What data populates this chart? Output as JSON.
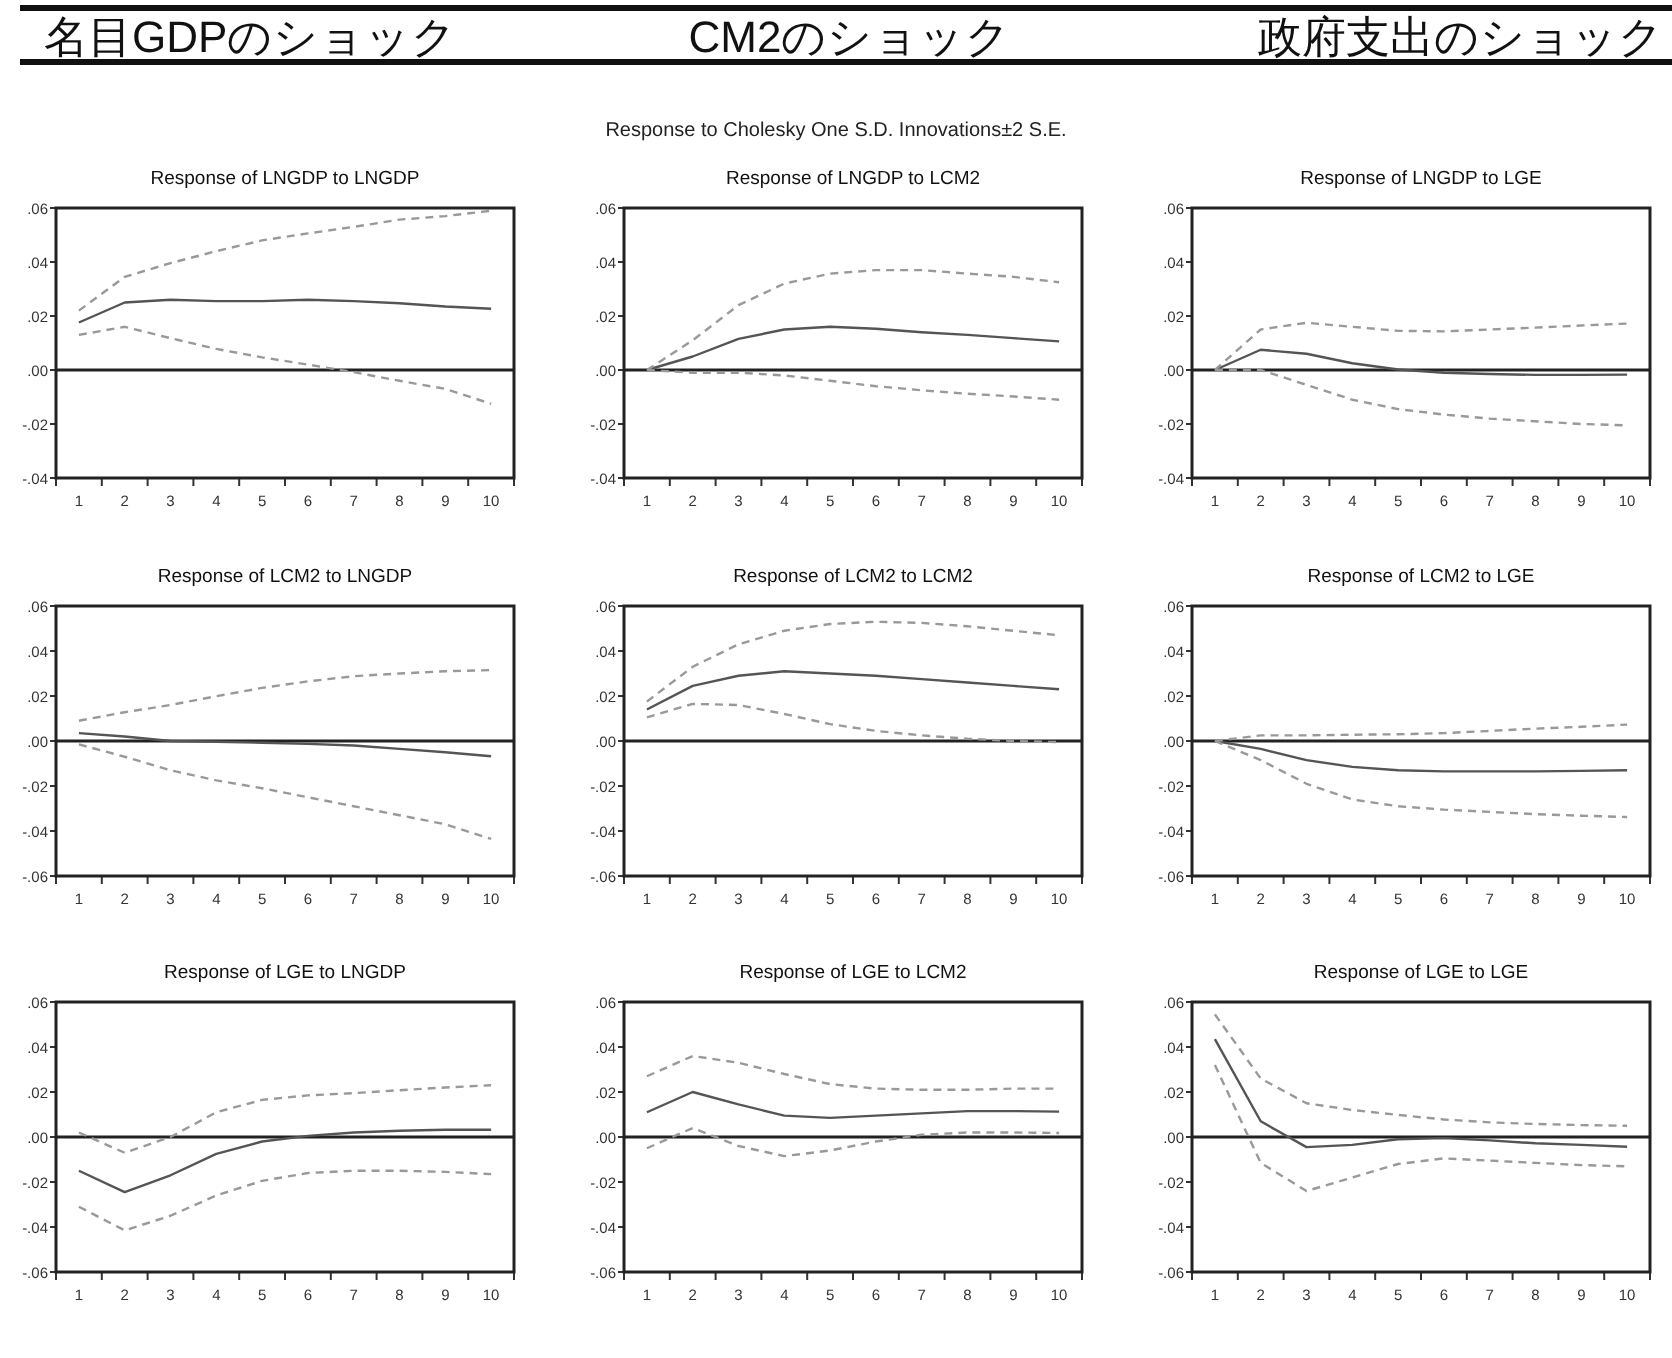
{
  "chart_data": [
    {
      "type": "other",
      "annotations": [
        "名目GDPのショック",
        "CM2のショック",
        "政府支出のショック",
        "Response to Cholesky One S.D. Innovations±2 S.E."
      ]
    },
    {
      "type": "line",
      "title": "Response of LNGDP to LNGDP",
      "categories": [
        "1",
        "2",
        "3",
        "4",
        "5",
        "6",
        "7",
        "8",
        "9",
        "10"
      ],
      "ylim": [
        -0.04,
        0.06
      ],
      "yticks": [
        {
          "value": -0.04,
          "label": "-.04"
        },
        {
          "value": -0.02,
          "label": "-.02"
        },
        {
          "value": 0,
          "label": ".00"
        },
        {
          "value": 0.02,
          "label": ".02"
        },
        {
          "value": 0.04,
          "label": ".04"
        },
        {
          "value": 0.06,
          "label": ".06"
        }
      ],
      "ref_lines": [
        {
          "axis": "y",
          "value": 0
        }
      ],
      "series": [
        {
          "color": "#555555",
          "line_style": "solid",
          "values": [
            0.0176,
            0.025,
            0.026,
            0.0255,
            0.0255,
            0.026,
            0.0255,
            0.0247,
            0.0235,
            0.0227
          ]
        },
        {
          "color": "#999999",
          "line_style": "dashed",
          "values": [
            0.022,
            0.0345,
            0.0396,
            0.044,
            0.048,
            0.0506,
            0.053,
            0.0557,
            0.057,
            0.059
          ]
        },
        {
          "color": "#999999",
          "line_style": "dashed",
          "values": [
            0.013,
            0.016,
            0.0118,
            0.0078,
            0.0047,
            0.002,
            -0.0008,
            -0.004,
            -0.007,
            -0.0125
          ]
        }
      ]
    },
    {
      "type": "line",
      "title": "Response of LNGDP to LCM2",
      "categories": [
        "1",
        "2",
        "3",
        "4",
        "5",
        "6",
        "7",
        "8",
        "9",
        "10"
      ],
      "ylim": [
        -0.04,
        0.06
      ],
      "yticks": [
        {
          "value": -0.04,
          "label": "-.04"
        },
        {
          "value": -0.02,
          "label": "-.02"
        },
        {
          "value": 0,
          "label": ".00"
        },
        {
          "value": 0.02,
          "label": ".02"
        },
        {
          "value": 0.04,
          "label": ".04"
        },
        {
          "value": 0.06,
          "label": ".06"
        }
      ],
      "ref_lines": [
        {
          "axis": "y",
          "value": 0
        }
      ],
      "series": [
        {
          "color": "#555555",
          "line_style": "solid",
          "values": [
            0,
            0.005,
            0.0115,
            0.015,
            0.016,
            0.0153,
            0.014,
            0.013,
            0.0118,
            0.0106
          ]
        },
        {
          "color": "#999999",
          "line_style": "dashed",
          "values": [
            0,
            0.011,
            0.024,
            0.032,
            0.0357,
            0.037,
            0.037,
            0.0357,
            0.0345,
            0.0325
          ]
        },
        {
          "color": "#999999",
          "line_style": "dashed",
          "values": [
            0,
            -0.001,
            -0.001,
            -0.002,
            -0.004,
            -0.006,
            -0.0075,
            -0.0088,
            -0.0098,
            -0.011
          ]
        }
      ]
    },
    {
      "type": "line",
      "title": "Response of LNGDP to LGE",
      "categories": [
        "1",
        "2",
        "3",
        "4",
        "5",
        "6",
        "7",
        "8",
        "9",
        "10"
      ],
      "ylim": [
        -0.04,
        0.06
      ],
      "yticks": [
        {
          "value": -0.04,
          "label": "-.04"
        },
        {
          "value": -0.02,
          "label": "-.02"
        },
        {
          "value": 0,
          "label": ".00"
        },
        {
          "value": 0.02,
          "label": ".02"
        },
        {
          "value": 0.04,
          "label": ".04"
        },
        {
          "value": 0.06,
          "label": ".06"
        }
      ],
      "ref_lines": [
        {
          "axis": "y",
          "value": 0
        }
      ],
      "series": [
        {
          "color": "#555555",
          "line_style": "solid",
          "values": [
            0,
            0.0075,
            0.006,
            0.0025,
            0.0002,
            -0.001,
            -0.0015,
            -0.0018,
            -0.0018,
            -0.0017
          ]
        },
        {
          "color": "#999999",
          "line_style": "dashed",
          "values": [
            0,
            0.015,
            0.0175,
            0.016,
            0.0145,
            0.0143,
            0.015,
            0.0157,
            0.0165,
            0.0172
          ]
        },
        {
          "color": "#999999",
          "line_style": "dashed",
          "values": [
            0,
            0,
            -0.0055,
            -0.011,
            -0.0145,
            -0.0165,
            -0.018,
            -0.019,
            -0.02,
            -0.0205
          ]
        }
      ]
    },
    {
      "type": "line",
      "title": "Response of LCM2 to LNGDP",
      "categories": [
        "1",
        "2",
        "3",
        "4",
        "5",
        "6",
        "7",
        "8",
        "9",
        "10"
      ],
      "ylim": [
        -0.06,
        0.06
      ],
      "yticks": [
        {
          "value": -0.06,
          "label": "-.06"
        },
        {
          "value": -0.04,
          "label": "-.04"
        },
        {
          "value": -0.02,
          "label": "-.02"
        },
        {
          "value": 0,
          "label": ".00"
        },
        {
          "value": 0.02,
          "label": ".02"
        },
        {
          "value": 0.04,
          "label": ".04"
        },
        {
          "value": 0.06,
          "label": ".06"
        }
      ],
      "ref_lines": [
        {
          "axis": "y",
          "value": 0
        }
      ],
      "series": [
        {
          "color": "#555555",
          "line_style": "solid",
          "values": [
            0.0035,
            0.002,
            0,
            -0.0003,
            -0.0008,
            -0.0013,
            -0.002,
            -0.0035,
            -0.005,
            -0.0068
          ]
        },
        {
          "color": "#999999",
          "line_style": "dashed",
          "values": [
            0.009,
            0.0128,
            0.016,
            0.0199,
            0.0236,
            0.0265,
            0.0288,
            0.03,
            0.031,
            0.0315
          ]
        },
        {
          "color": "#999999",
          "line_style": "dashed",
          "values": [
            -0.0015,
            -0.007,
            -0.013,
            -0.0175,
            -0.021,
            -0.025,
            -0.029,
            -0.033,
            -0.037,
            -0.0435
          ]
        }
      ]
    },
    {
      "type": "line",
      "title": "Response of LCM2 to LCM2",
      "categories": [
        "1",
        "2",
        "3",
        "4",
        "5",
        "6",
        "7",
        "8",
        "9",
        "10"
      ],
      "ylim": [
        -0.06,
        0.06
      ],
      "yticks": [
        {
          "value": -0.06,
          "label": "-.06"
        },
        {
          "value": -0.04,
          "label": "-.04"
        },
        {
          "value": -0.02,
          "label": "-.02"
        },
        {
          "value": 0,
          "label": ".00"
        },
        {
          "value": 0.02,
          "label": ".02"
        },
        {
          "value": 0.04,
          "label": ".04"
        },
        {
          "value": 0.06,
          "label": ".06"
        }
      ],
      "ref_lines": [
        {
          "axis": "y",
          "value": 0
        }
      ],
      "series": [
        {
          "color": "#555555",
          "line_style": "solid",
          "values": [
            0.014,
            0.0245,
            0.029,
            0.031,
            0.03,
            0.029,
            0.0275,
            0.026,
            0.0245,
            0.023
          ]
        },
        {
          "color": "#999999",
          "line_style": "dashed",
          "values": [
            0.0175,
            0.033,
            0.043,
            0.049,
            0.052,
            0.053,
            0.0525,
            0.051,
            0.049,
            0.047
          ]
        },
        {
          "color": "#999999",
          "line_style": "dashed",
          "values": [
            0.0105,
            0.0165,
            0.016,
            0.012,
            0.0075,
            0.0045,
            0.0025,
            0.001,
            0,
            -0.0005
          ]
        }
      ]
    },
    {
      "type": "line",
      "title": "Response of LCM2 to LGE",
      "categories": [
        "1",
        "2",
        "3",
        "4",
        "5",
        "6",
        "7",
        "8",
        "9",
        "10"
      ],
      "ylim": [
        -0.06,
        0.06
      ],
      "yticks": [
        {
          "value": -0.06,
          "label": "-.06"
        },
        {
          "value": -0.04,
          "label": "-.04"
        },
        {
          "value": -0.02,
          "label": "-.02"
        },
        {
          "value": 0,
          "label": ".00"
        },
        {
          "value": 0.02,
          "label": ".02"
        },
        {
          "value": 0.04,
          "label": ".04"
        },
        {
          "value": 0.06,
          "label": ".06"
        }
      ],
      "ref_lines": [
        {
          "axis": "y",
          "value": 0
        }
      ],
      "series": [
        {
          "color": "#555555",
          "line_style": "solid",
          "values": [
            0,
            -0.0035,
            -0.0085,
            -0.0115,
            -0.013,
            -0.0135,
            -0.0135,
            -0.0135,
            -0.0133,
            -0.013
          ]
        },
        {
          "color": "#999999",
          "line_style": "dashed",
          "values": [
            0,
            0.0025,
            0.0025,
            0.0028,
            0.003,
            0.0035,
            0.0045,
            0.0055,
            0.0063,
            0.0073
          ]
        },
        {
          "color": "#999999",
          "line_style": "dashed",
          "values": [
            0,
            -0.0085,
            -0.019,
            -0.026,
            -0.029,
            -0.0305,
            -0.0315,
            -0.0325,
            -0.0332,
            -0.0338
          ]
        }
      ]
    },
    {
      "type": "line",
      "title": "Response of LGE to LNGDP",
      "categories": [
        "1",
        "2",
        "3",
        "4",
        "5",
        "6",
        "7",
        "8",
        "9",
        "10"
      ],
      "ylim": [
        -0.06,
        0.06
      ],
      "yticks": [
        {
          "value": -0.06,
          "label": "-.06"
        },
        {
          "value": -0.04,
          "label": "-.04"
        },
        {
          "value": -0.02,
          "label": "-.02"
        },
        {
          "value": 0,
          "label": ".00"
        },
        {
          "value": 0.02,
          "label": ".02"
        },
        {
          "value": 0.04,
          "label": ".04"
        },
        {
          "value": 0.06,
          "label": ".06"
        }
      ],
      "ref_lines": [
        {
          "axis": "y",
          "value": 0
        }
      ],
      "series": [
        {
          "color": "#555555",
          "line_style": "solid",
          "values": [
            -0.015,
            -0.0245,
            -0.017,
            -0.0075,
            -0.002,
            0.0005,
            0.002,
            0.0028,
            0.0032,
            0.0032
          ]
        },
        {
          "color": "#999999",
          "line_style": "dashed",
          "values": [
            0.002,
            -0.007,
            0,
            0.011,
            0.0165,
            0.0185,
            0.0195,
            0.0208,
            0.022,
            0.023
          ]
        },
        {
          "color": "#999999",
          "line_style": "dashed",
          "values": [
            -0.031,
            -0.0415,
            -0.035,
            -0.026,
            -0.0195,
            -0.016,
            -0.015,
            -0.015,
            -0.0155,
            -0.0165
          ]
        }
      ]
    },
    {
      "type": "line",
      "title": "Response of LGE to LCM2",
      "categories": [
        "1",
        "2",
        "3",
        "4",
        "5",
        "6",
        "7",
        "8",
        "9",
        "10"
      ],
      "ylim": [
        -0.06,
        0.06
      ],
      "yticks": [
        {
          "value": -0.06,
          "label": "-.06"
        },
        {
          "value": -0.04,
          "label": "-.04"
        },
        {
          "value": -0.02,
          "label": "-.02"
        },
        {
          "value": 0,
          "label": ".00"
        },
        {
          "value": 0.02,
          "label": ".02"
        },
        {
          "value": 0.04,
          "label": ".04"
        },
        {
          "value": 0.06,
          "label": ".06"
        }
      ],
      "ref_lines": [
        {
          "axis": "y",
          "value": 0
        }
      ],
      "series": [
        {
          "color": "#555555",
          "line_style": "solid",
          "values": [
            0.011,
            0.02,
            0.0145,
            0.0095,
            0.0085,
            0.0095,
            0.0105,
            0.0115,
            0.0115,
            0.0113
          ]
        },
        {
          "color": "#999999",
          "line_style": "dashed",
          "values": [
            0.027,
            0.036,
            0.033,
            0.028,
            0.0235,
            0.0215,
            0.021,
            0.021,
            0.0215,
            0.0215
          ]
        },
        {
          "color": "#999999",
          "line_style": "dashed",
          "values": [
            -0.005,
            0.004,
            -0.004,
            -0.0085,
            -0.006,
            -0.002,
            0.001,
            0.002,
            0.002,
            0.0018
          ]
        }
      ]
    },
    {
      "type": "line",
      "title": "Response of LGE to LGE",
      "categories": [
        "1",
        "2",
        "3",
        "4",
        "5",
        "6",
        "7",
        "8",
        "9",
        "10"
      ],
      "ylim": [
        -0.06,
        0.06
      ],
      "yticks": [
        {
          "value": -0.06,
          "label": "-.06"
        },
        {
          "value": -0.04,
          "label": "-.04"
        },
        {
          "value": -0.02,
          "label": "-.02"
        },
        {
          "value": 0,
          "label": ".00"
        },
        {
          "value": 0.02,
          "label": ".02"
        },
        {
          "value": 0.04,
          "label": ".04"
        },
        {
          "value": 0.06,
          "label": ".06"
        }
      ],
      "ref_lines": [
        {
          "axis": "y",
          "value": 0
        }
      ],
      "series": [
        {
          "color": "#555555",
          "line_style": "solid",
          "values": [
            0.0435,
            0.007,
            -0.0045,
            -0.0035,
            -0.001,
            -0.0005,
            -0.0015,
            -0.0028,
            -0.0035,
            -0.0043
          ]
        },
        {
          "color": "#999999",
          "line_style": "dashed",
          "values": [
            0.0545,
            0.026,
            0.015,
            0.012,
            0.0098,
            0.0078,
            0.0065,
            0.0058,
            0.0053,
            0.005
          ]
        },
        {
          "color": "#999999",
          "line_style": "dashed",
          "values": [
            0.032,
            -0.0115,
            -0.024,
            -0.018,
            -0.012,
            -0.0095,
            -0.0105,
            -0.0115,
            -0.0125,
            -0.013
          ]
        }
      ]
    }
  ]
}
